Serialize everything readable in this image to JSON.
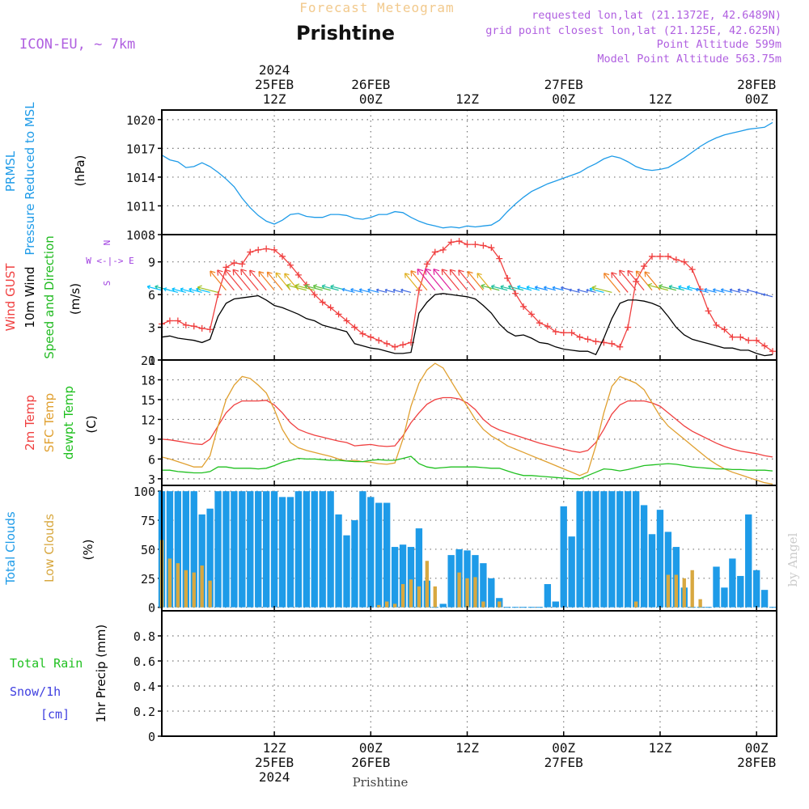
{
  "header": {
    "super_title": "Forecast Meteogram",
    "location": "Prishtine",
    "model": "ICON-EU, ~ 7km",
    "requested": "requested lon,lat (21.1372E, 42.6489N)",
    "grid_point": "grid point closest lon,lat (21.125E, 42.625N)",
    "point_altitude": "Point Altitude 599m",
    "model_altitude": "Model Point Altitude 563.75m"
  },
  "footer": {
    "location": "Prishtine",
    "watermark": "by Angel"
  },
  "colors": {
    "pressure": "#1e9be8",
    "gust": "#f04040",
    "wind": "#000000",
    "wind_dir": "#22bb22",
    "temp2m": "#f04040",
    "sfc": "#e0a030",
    "dewpt": "#20c020",
    "total_cloud": "#1e9be8",
    "low_cloud": "#d8a840",
    "rain": "#20c020",
    "snow": "#4040e0",
    "compass": "#a040e0",
    "grid": "#777777"
  },
  "time_axis": {
    "top_labels": [
      {
        "t": 14,
        "lines": [
          "2024",
          "25FEB",
          "12Z"
        ]
      },
      {
        "t": 26,
        "lines": [
          "26FEB",
          "00Z"
        ]
      },
      {
        "t": 38,
        "lines": [
          "12Z"
        ]
      },
      {
        "t": 50,
        "lines": [
          "27FEB",
          "00Z"
        ]
      },
      {
        "t": 62,
        "lines": [
          "12Z"
        ]
      },
      {
        "t": 74,
        "lines": [
          "28FEB",
          "00Z"
        ]
      }
    ],
    "bottom_labels": [
      {
        "t": 14,
        "lines": [
          "12Z",
          "25FEB",
          "2024"
        ]
      },
      {
        "t": 26,
        "lines": [
          "00Z",
          "26FEB"
        ]
      },
      {
        "t": 38,
        "lines": [
          "12Z"
        ]
      },
      {
        "t": 50,
        "lines": [
          "00Z",
          "27FEB"
        ]
      },
      {
        "t": 62,
        "lines": [
          "12Z"
        ]
      },
      {
        "t": 74,
        "lines": [
          "00Z",
          "28FEB"
        ]
      }
    ]
  },
  "chart_data": [
    {
      "type": "line",
      "panel": "pressure",
      "ylabel_lines": [
        "PRMSL",
        "Pressure Reduced to MSL"
      ],
      "unit": "(hPa)",
      "ylim": [
        1008,
        1021
      ],
      "yticks": [
        1008,
        1011,
        1014,
        1017,
        1020
      ],
      "x_hours": [
        0,
        1,
        2,
        3,
        4,
        5,
        6,
        7,
        8,
        9,
        10,
        11,
        12,
        13,
        14,
        15,
        16,
        17,
        18,
        19,
        20,
        21,
        22,
        23,
        24,
        25,
        26,
        27,
        28,
        29,
        30,
        31,
        32,
        33,
        34,
        35,
        36,
        37,
        38,
        39,
        40,
        41,
        42,
        43,
        44,
        45,
        46,
        47,
        48,
        49,
        50,
        51,
        52,
        53,
        54,
        55,
        56,
        57,
        58,
        59,
        60,
        61,
        62,
        63,
        64,
        65,
        66,
        67,
        68,
        69,
        70,
        71,
        72,
        73,
        74,
        75,
        76
      ],
      "series": [
        {
          "values": [
            1016.3,
            1015.8,
            1015.6,
            1015.0,
            1015.1,
            1015.5,
            1015.1,
            1014.5,
            1013.8,
            1013.0,
            1011.8,
            1010.8,
            1010.0,
            1009.4,
            1009.1,
            1009.5,
            1010.1,
            1010.2,
            1009.9,
            1009.8,
            1009.8,
            1010.1,
            1010.1,
            1010.0,
            1009.7,
            1009.6,
            1009.8,
            1010.1,
            1010.1,
            1010.4,
            1010.3,
            1009.8,
            1009.4,
            1009.1,
            1008.9,
            1008.7,
            1008.8,
            1008.7,
            1008.9,
            1008.8,
            1008.9,
            1009.0,
            1009.5,
            1010.4,
            1011.2,
            1011.9,
            1012.5,
            1012.9,
            1013.3,
            1013.6,
            1013.9,
            1014.2,
            1014.5,
            1015.0,
            1015.4,
            1015.9,
            1016.2,
            1016.0,
            1015.6,
            1015.1,
            1014.8,
            1014.7,
            1014.8,
            1015.0,
            1015.5,
            1016.0,
            1016.6,
            1017.2,
            1017.7,
            1018.1,
            1018.4,
            1018.6,
            1018.8,
            1019.0,
            1019.1,
            1019.2,
            1019.7
          ]
        }
      ]
    },
    {
      "type": "line",
      "panel": "wind",
      "ylabel_lines": [
        "Wind GUST",
        "10m Wind",
        "Speed and Direction"
      ],
      "unit": "(m/s)",
      "ylim": [
        0,
        11.5
      ],
      "yticks": [
        0,
        3,
        6,
        9
      ],
      "compass": [
        "N",
        "W <-|-> E",
        "S"
      ],
      "x_hours": [
        0,
        1,
        2,
        3,
        4,
        5,
        6,
        7,
        8,
        9,
        10,
        11,
        12,
        13,
        14,
        15,
        16,
        17,
        18,
        19,
        20,
        21,
        22,
        23,
        24,
        25,
        26,
        27,
        28,
        29,
        30,
        31,
        32,
        33,
        34,
        35,
        36,
        37,
        38,
        39,
        40,
        41,
        42,
        43,
        44,
        45,
        46,
        47,
        48,
        49,
        50,
        51,
        52,
        53,
        54,
        55,
        56,
        57,
        58,
        59,
        60,
        61,
        62,
        63,
        64,
        65,
        66,
        67,
        68,
        69,
        70,
        71,
        72,
        73,
        74,
        75,
        76
      ],
      "series": [
        {
          "name": "Wind GUST",
          "values": [
            3.3,
            3.6,
            3.6,
            3.2,
            3.1,
            2.9,
            2.8,
            6.0,
            8.5,
            8.9,
            8.8,
            9.9,
            10.1,
            10.2,
            10.1,
            9.5,
            8.7,
            7.8,
            6.9,
            6.0,
            5.3,
            4.8,
            4.2,
            3.6,
            3.0,
            2.4,
            2.1,
            1.8,
            1.5,
            1.2,
            1.4,
            1.6,
            6.4,
            8.8,
            9.9,
            10.1,
            10.8,
            10.9,
            10.6,
            10.6,
            10.5,
            10.3,
            9.3,
            7.5,
            6.1,
            4.9,
            4.2,
            3.4,
            3.1,
            2.6,
            2.5,
            2.5,
            2.1,
            1.9,
            1.7,
            1.6,
            1.5,
            1.2,
            3.0,
            7.2,
            8.6,
            9.5,
            9.5,
            9.5,
            9.2,
            9.0,
            8.3,
            6.5,
            4.5,
            3.2,
            2.8,
            2.1,
            2.1,
            1.8,
            1.8,
            1.3,
            0.8
          ]
        },
        {
          "name": "10m Wind",
          "values": [
            2.1,
            2.2,
            2.0,
            1.9,
            1.8,
            1.6,
            1.9,
            4.0,
            5.2,
            5.6,
            5.7,
            5.8,
            5.9,
            5.5,
            5.0,
            4.8,
            4.5,
            4.2,
            3.8,
            3.6,
            3.2,
            3.0,
            2.8,
            2.6,
            1.5,
            1.3,
            1.1,
            1.0,
            0.8,
            0.6,
            0.6,
            0.7,
            4.3,
            5.3,
            6.0,
            6.1,
            6.0,
            5.9,
            5.8,
            5.6,
            5.0,
            4.3,
            3.3,
            2.6,
            2.2,
            2.3,
            2.0,
            1.6,
            1.5,
            1.2,
            1.0,
            0.9,
            0.8,
            0.8,
            0.5,
            2.0,
            3.8,
            5.2,
            5.5,
            5.5,
            5.4,
            5.2,
            4.9,
            4.0,
            3.0,
            2.3,
            1.9,
            1.7,
            1.5,
            1.3,
            1.1,
            1.1,
            0.9,
            0.9,
            0.6,
            0.4,
            0.5
          ]
        }
      ],
      "direction_levels": [
        6.4,
        6.4,
        6.2,
        6.2,
        6.2,
        6.2,
        6.2,
        6.2,
        6.4,
        6.4,
        6.4,
        6.4,
        6.4,
        6.4,
        6.4,
        6.4,
        6.4,
        6.4,
        6.4,
        6.4,
        6.4,
        6.4,
        6.4,
        6.4,
        6.2,
        6.2,
        6.2,
        6.2,
        6.2,
        6.2,
        6.2,
        6.2,
        6.4,
        6.4,
        6.4,
        6.4,
        6.4,
        6.4,
        6.4,
        6.4,
        6.4,
        6.4,
        6.4,
        6.4,
        6.4,
        6.4,
        6.4,
        6.4,
        6.4,
        6.4,
        6.4,
        6.4,
        6.2,
        6.2,
        6.2,
        6.2,
        6.2,
        6.2,
        6.2,
        6.4,
        6.4,
        6.4,
        6.4,
        6.4,
        6.4,
        6.4,
        6.4,
        6.4,
        6.2,
        6.2,
        6.2,
        6.2,
        6.2,
        6.2,
        6.2,
        6.0,
        5.8
      ]
    },
    {
      "type": "line",
      "panel": "temperature",
      "ylabel_lines": [
        "2m Temp",
        "SFC Temp",
        "dewpt Temp"
      ],
      "unit": "(C)",
      "ylim": [
        2,
        21
      ],
      "yticks": [
        3,
        6,
        9,
        12,
        15,
        18,
        21
      ],
      "x_hours": [
        0,
        1,
        2,
        3,
        4,
        5,
        6,
        7,
        8,
        9,
        10,
        11,
        12,
        13,
        14,
        15,
        16,
        17,
        18,
        19,
        20,
        21,
        22,
        23,
        24,
        25,
        26,
        27,
        28,
        29,
        30,
        31,
        32,
        33,
        34,
        35,
        36,
        37,
        38,
        39,
        40,
        41,
        42,
        43,
        44,
        45,
        46,
        47,
        48,
        49,
        50,
        51,
        52,
        53,
        54,
        55,
        56,
        57,
        58,
        59,
        60,
        61,
        62,
        63,
        64,
        65,
        66,
        67,
        68,
        69,
        70,
        71,
        72,
        73,
        74,
        75,
        76
      ],
      "series": [
        {
          "name": "2m Temp",
          "values": [
            9.0,
            8.9,
            8.7,
            8.5,
            8.3,
            8.2,
            9.0,
            11.0,
            13.0,
            14.2,
            14.8,
            14.8,
            14.8,
            14.9,
            14.2,
            13.0,
            11.5,
            10.5,
            10.0,
            9.6,
            9.3,
            9.0,
            8.7,
            8.5,
            8.0,
            8.1,
            8.2,
            8.0,
            7.9,
            8.0,
            9.5,
            11.5,
            13.0,
            14.3,
            15.0,
            15.3,
            15.3,
            15.1,
            14.5,
            13.5,
            12.0,
            11.0,
            10.4,
            10.0,
            9.6,
            9.2,
            8.8,
            8.4,
            8.1,
            7.8,
            7.5,
            7.2,
            7.0,
            7.3,
            8.5,
            10.5,
            12.8,
            14.2,
            14.8,
            14.8,
            14.8,
            14.5,
            14.0,
            13.0,
            12.0,
            11.0,
            10.2,
            9.6,
            9.0,
            8.4,
            7.9,
            7.5,
            7.2,
            7.0,
            6.8,
            6.5,
            6.3
          ]
        },
        {
          "name": "SFC Temp",
          "values": [
            6.3,
            6.0,
            5.6,
            5.2,
            4.8,
            4.8,
            6.5,
            11.0,
            15.0,
            17.2,
            18.5,
            18.2,
            17.2,
            16.0,
            13.5,
            10.5,
            8.5,
            7.7,
            7.3,
            7.0,
            6.7,
            6.4,
            6.0,
            5.7,
            5.8,
            5.6,
            5.5,
            5.3,
            5.2,
            5.4,
            9.0,
            14.0,
            17.5,
            19.5,
            20.5,
            19.8,
            17.8,
            15.8,
            14.0,
            12.0,
            10.5,
            9.5,
            8.8,
            8.0,
            7.5,
            7.0,
            6.5,
            6.0,
            5.5,
            5.0,
            4.5,
            4.0,
            3.5,
            4.0,
            8.0,
            13.0,
            17.0,
            18.5,
            18.0,
            17.5,
            16.5,
            14.5,
            12.5,
            11.0,
            10.0,
            9.0,
            8.0,
            7.0,
            6.0,
            5.2,
            4.5,
            4.0,
            3.6,
            3.2,
            2.8,
            2.4,
            2.2
          ]
        },
        {
          "name": "dewpt Temp",
          "values": [
            4.3,
            4.3,
            4.1,
            4.0,
            3.9,
            3.9,
            4.1,
            4.8,
            4.8,
            4.6,
            4.6,
            4.6,
            4.5,
            4.6,
            5.0,
            5.5,
            5.8,
            6.1,
            6.0,
            6.0,
            5.9,
            5.8,
            5.8,
            5.7,
            5.6,
            5.6,
            5.8,
            5.9,
            5.8,
            5.8,
            6.1,
            6.4,
            5.3,
            4.8,
            4.6,
            4.7,
            4.8,
            4.8,
            4.8,
            4.8,
            4.7,
            4.6,
            4.6,
            4.2,
            3.8,
            3.5,
            3.5,
            3.4,
            3.3,
            3.2,
            3.1,
            3.0,
            3.0,
            3.5,
            4.0,
            4.5,
            4.4,
            4.2,
            4.4,
            4.7,
            5.0,
            5.1,
            5.2,
            5.3,
            5.2,
            5.0,
            4.8,
            4.7,
            4.6,
            4.5,
            4.5,
            4.4,
            4.4,
            4.3,
            4.3,
            4.3,
            4.2
          ]
        }
      ]
    },
    {
      "type": "bar",
      "panel": "clouds",
      "ylabel_lines": [
        "Total Clouds",
        "Low Clouds"
      ],
      "unit": "(%)",
      "ylim": [
        -3,
        105
      ],
      "yticks": [
        0,
        25,
        50,
        75,
        100
      ],
      "x_hours": [
        0,
        1,
        2,
        3,
        4,
        5,
        6,
        7,
        8,
        9,
        10,
        11,
        12,
        13,
        14,
        15,
        16,
        17,
        18,
        19,
        20,
        21,
        22,
        23,
        24,
        25,
        26,
        27,
        28,
        29,
        30,
        31,
        32,
        33,
        34,
        35,
        36,
        37,
        38,
        39,
        40,
        41,
        42,
        43,
        44,
        45,
        46,
        47,
        48,
        49,
        50,
        51,
        52,
        53,
        54,
        55,
        56,
        57,
        58,
        59,
        60,
        61,
        62,
        63,
        64,
        65,
        66,
        67,
        68,
        69,
        70,
        71,
        72,
        73,
        74,
        75,
        76
      ],
      "series": [
        {
          "name": "Total Clouds",
          "values": [
            100,
            100,
            100,
            100,
            100,
            80,
            85,
            100,
            100,
            100,
            100,
            100,
            100,
            100,
            100,
            95,
            95,
            100,
            100,
            100,
            100,
            100,
            80,
            62,
            75,
            100,
            95,
            90,
            90,
            52,
            54,
            52,
            68,
            23,
            0,
            3,
            45,
            50,
            49,
            45,
            38,
            25,
            8,
            0,
            0,
            0,
            0,
            0,
            20,
            5,
            87,
            61,
            100,
            100,
            100,
            100,
            100,
            100,
            100,
            100,
            88,
            63,
            84,
            65,
            52,
            17,
            0,
            0,
            0,
            35,
            17,
            42,
            27,
            80,
            32,
            15,
            0
          ]
        },
        {
          "name": "Low Clouds",
          "values": [
            58,
            42,
            38,
            32,
            30,
            36,
            23,
            0,
            0,
            0,
            0,
            0,
            0,
            0,
            0,
            0,
            0,
            0,
            0,
            0,
            0,
            0,
            0,
            0,
            0,
            0,
            0,
            2,
            5,
            3,
            20,
            24,
            18,
            40,
            18,
            0,
            0,
            30,
            25,
            26,
            5,
            0,
            5,
            0,
            0,
            0,
            0,
            0,
            0,
            0,
            0,
            0,
            0,
            0,
            0,
            0,
            0,
            0,
            0,
            5,
            0,
            0,
            0,
            28,
            28,
            25,
            32,
            7,
            0,
            0,
            0,
            0,
            0,
            0,
            0,
            0,
            0
          ]
        }
      ]
    },
    {
      "type": "line",
      "panel": "precip",
      "ylabel_lines": [
        "1hr Precip (mm)"
      ],
      "legend_lines": [
        "Total  Rain",
        "Snow/1h",
        "[cm]"
      ],
      "ylim": [
        0,
        1.0
      ],
      "yticks": [
        0,
        0.2,
        0.4,
        0.6,
        0.8
      ],
      "x_hours": [
        0,
        76
      ],
      "series": [
        {
          "name": "Total Rain",
          "values": [
            0,
            0
          ]
        }
      ]
    }
  ]
}
